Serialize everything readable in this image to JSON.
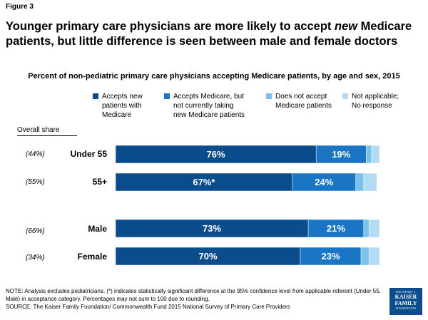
{
  "figure_label": "Figure 3",
  "title": "Younger primary care physicians are more likely to accept new Medicare patients, but little difference is seen between male and female doctors",
  "title_parts": {
    "before": "Younger primary care physicians are more likely to accept ",
    "emphasis": "new",
    "after": " Medicare patients, but little difference is seen between male and female doctors"
  },
  "chart_data": {
    "type": "bar",
    "orientation": "horizontal",
    "stacked": true,
    "title": "Percent of non-pediatric primary care physicians accepting Medicare patients, by age and sex, 2015",
    "categories": [
      "Under 55",
      "55+",
      "Male",
      "Female"
    ],
    "overall_share_label": "Overall share",
    "overall_share": [
      "(44%)",
      "(55%)",
      "(66%)",
      "(34%)"
    ],
    "series": [
      {
        "name": "Accepts new patients with Medicare",
        "color": "#0b4c8c",
        "values": [
          76,
          67,
          73,
          70
        ],
        "labels": [
          "76%",
          "67%*",
          "73%",
          "70%"
        ]
      },
      {
        "name": "Accepts Medicare, but not currently taking new Medicare patients",
        "color": "#1a75c4",
        "values": [
          19,
          24,
          21,
          23
        ],
        "labels": [
          "19%",
          "24%",
          "21%",
          "23%"
        ]
      },
      {
        "name": "Does not accept Medicare patients",
        "color": "#7cc1ea",
        "values": [
          2,
          3,
          2,
          3
        ],
        "labels": [
          "",
          "",
          "",
          ""
        ]
      },
      {
        "name": "Not applicable; No response",
        "color": "#b3dcf4",
        "values": [
          3,
          5,
          4,
          4
        ],
        "labels": [
          "",
          "",
          "",
          ""
        ]
      }
    ],
    "xlim": [
      0,
      100
    ],
    "grid": false,
    "legend_position": "top"
  },
  "legend": [
    {
      "lines": [
        "Accepts new",
        "patients with",
        "Medicare"
      ],
      "color": "#0b4c8c"
    },
    {
      "lines": [
        "Accepts Medicare, but",
        "not currently taking",
        "new Medicare patients"
      ],
      "color": "#1a75c4"
    },
    {
      "lines": [
        "Does not accept",
        "Medicare patients"
      ],
      "color": "#7cc1ea"
    },
    {
      "lines": [
        "Not applicable;",
        "No response"
      ],
      "color": "#b3dcf4"
    }
  ],
  "note": "NOTE: Analysis excludes pediatricians.  (*) indicates statistically significant difference at the 95% confidence level from applicable referent (Under 55, Male) in acceptance category. Percentages may not sum to 100 due to rounding.",
  "source": "SOURCE: The Kaiser Family Foundation/ Commonwealth Fund 2015 National Survey of Primary Care Providers",
  "logo": {
    "line1": "THE HENRY J.",
    "line2": "KAISER",
    "line3": "FAMILY",
    "line4": "FOUNDATION"
  }
}
